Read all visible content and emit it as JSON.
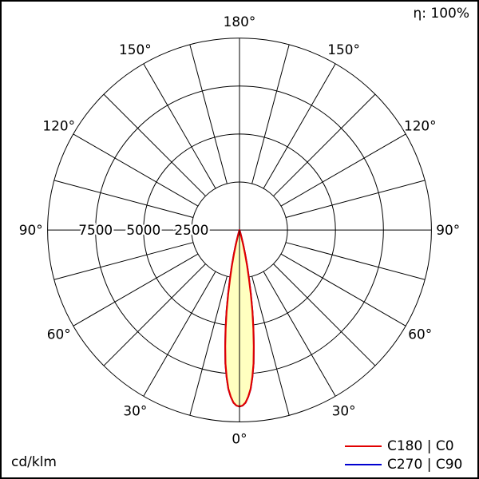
{
  "header": {
    "eta_label": "η: 100%"
  },
  "footer": {
    "unit_label": "cd/klm"
  },
  "legend": {
    "items": [
      {
        "label": "C180 | C0",
        "color": "#e10000"
      },
      {
        "label": "C270 | C90",
        "color": "#0000d0"
      }
    ]
  },
  "chart_data": {
    "type": "polar",
    "unit": "cd/klm",
    "efficiency_text": "η: 100%",
    "max_value": 10000,
    "spoke_step_deg": 15,
    "rings": [
      {
        "value": 2500,
        "label": "2500"
      },
      {
        "value": 5000,
        "label": "5000"
      },
      {
        "value": 7500,
        "label": "7500"
      },
      {
        "value": 10000,
        "label": ""
      }
    ],
    "angle_labels": [
      {
        "deg": 0,
        "label": "0°"
      },
      {
        "deg": 30,
        "label": "30°"
      },
      {
        "deg": 60,
        "label": "60°"
      },
      {
        "deg": 90,
        "label": "90°"
      },
      {
        "deg": 120,
        "label": "120°"
      },
      {
        "deg": 150,
        "label": "150°"
      },
      {
        "deg": 180,
        "label": "180°"
      }
    ],
    "series": [
      {
        "name": "C180 | C0",
        "color": "#e10000",
        "fill": "#ffffc0",
        "symmetric": true,
        "gamma_deg": [
          0,
          1,
          2,
          3,
          4,
          5,
          6,
          7,
          8,
          9,
          10,
          11,
          12,
          13,
          14,
          15,
          16,
          17
        ],
        "values": [
          9200,
          9150,
          9000,
          8700,
          8300,
          7700,
          7000,
          6100,
          5200,
          4300,
          3400,
          2600,
          1900,
          1300,
          800,
          400,
          150,
          0
        ]
      },
      {
        "name": "C270 | C90",
        "color": "#0000d0",
        "fill": "none",
        "symmetric": true,
        "gamma_deg": [
          0,
          1,
          2,
          3,
          4,
          5,
          6,
          7,
          8,
          9,
          10,
          11,
          12,
          13,
          14,
          15,
          16,
          17
        ],
        "values": [
          9200,
          9150,
          9000,
          8700,
          8300,
          7700,
          7000,
          6100,
          5200,
          4300,
          3400,
          2600,
          1900,
          1300,
          800,
          400,
          150,
          0
        ]
      }
    ]
  }
}
